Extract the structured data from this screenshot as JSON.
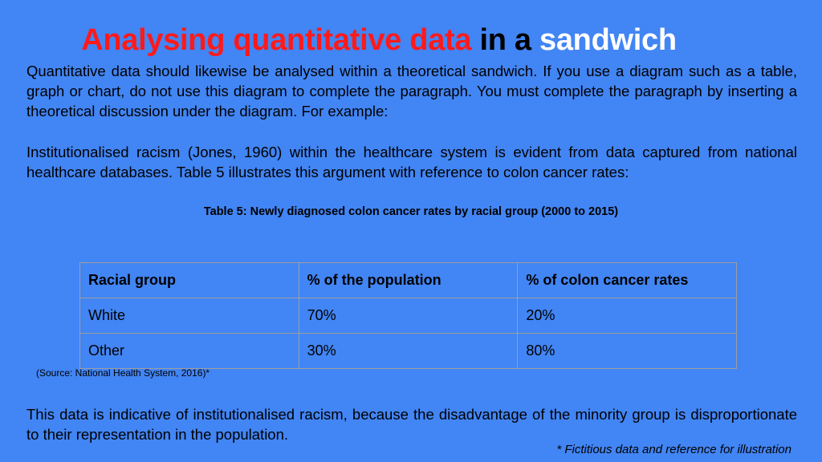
{
  "title": {
    "part1": "Analysing quantitative data",
    "part2": "in a",
    "part3": "sandwich"
  },
  "paragraphs": {
    "intro": "Quantitative data should likewise be analysed within a theoretical sandwich. If you use a diagram such as a table, graph or chart, do not use this diagram to complete the paragraph. You must complete the paragraph by inserting a theoretical discussion under the diagram. For example:",
    "example": "Institutionalised racism (Jones, 1960) within the healthcare system is evident from data captured from national healthcare databases. Table 5 illustrates this argument with reference to colon cancer rates:",
    "conclusion": "This data is indicative of institutionalised racism, because the disadvantage of the minority group is disproportionate to their representation in the population."
  },
  "table": {
    "caption": "Table 5: Newly diagnosed colon cancer rates by racial group (2000 to 2015)",
    "headers": [
      "Racial group",
      "% of the population",
      "% of colon cancer rates"
    ],
    "rows": [
      [
        "White",
        "70%",
        "20%"
      ],
      [
        "Other",
        "30%",
        "80%"
      ]
    ],
    "source": "(Source: National Health System, 2016)*"
  },
  "footnote": "* Fictitious data and reference for illustration",
  "colors": {
    "background": "#4285f4",
    "title_red": "#ff1a1a",
    "title_white": "#ffffff"
  }
}
